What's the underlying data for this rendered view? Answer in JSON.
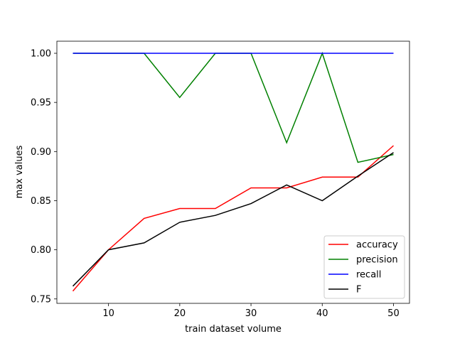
{
  "chart_data": {
    "type": "line",
    "title": "",
    "xlabel": "train dataset volume",
    "ylabel": "max values",
    "xlim": [
      2.75,
      52.25
    ],
    "ylim": [
      0.7455,
      1.0123
    ],
    "x_ticks": [
      10,
      20,
      30,
      40,
      50
    ],
    "y_ticks": [
      0.75,
      0.8,
      0.85,
      0.9,
      0.95,
      1.0
    ],
    "x_tick_labels": [
      "10",
      "20",
      "30",
      "40",
      "50"
    ],
    "y_tick_labels": [
      "0.75",
      "0.80",
      "0.85",
      "0.90",
      "0.95",
      "1.00"
    ],
    "grid": false,
    "legend_position": "lower-right",
    "x": [
      5,
      10,
      15,
      20,
      25,
      30,
      35,
      40,
      45,
      50
    ],
    "series": [
      {
        "name": "accuracy",
        "color": "#ff0000",
        "values": [
          0.758,
          0.8,
          0.832,
          0.842,
          0.842,
          0.863,
          0.863,
          0.874,
          0.874,
          0.906
        ]
      },
      {
        "name": "precision",
        "color": "#008000",
        "values": [
          1.0,
          1.0,
          1.0,
          0.955,
          1.0,
          1.0,
          0.909,
          1.0,
          0.889,
          0.897
        ]
      },
      {
        "name": "recall",
        "color": "#0000ff",
        "values": [
          1.0,
          1.0,
          1.0,
          1.0,
          1.0,
          1.0,
          1.0,
          1.0,
          1.0,
          1.0
        ]
      },
      {
        "name": "F",
        "color": "#000000",
        "values": [
          0.763,
          0.8,
          0.807,
          0.828,
          0.835,
          0.847,
          0.866,
          0.85,
          0.875,
          0.899
        ]
      }
    ]
  }
}
